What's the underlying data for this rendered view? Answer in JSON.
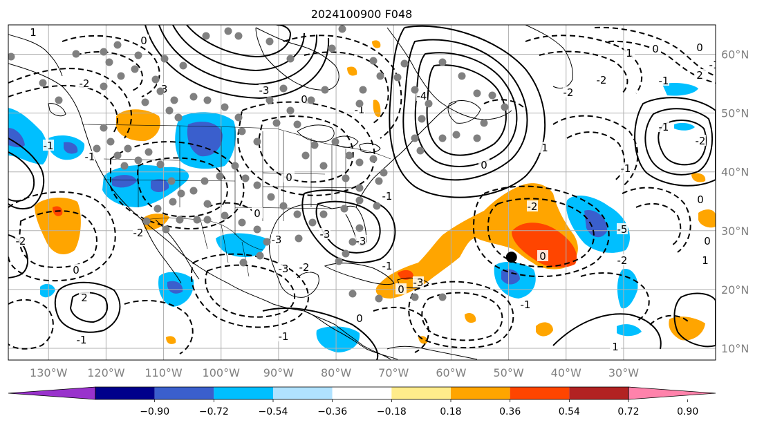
{
  "title": "2024100900 F048",
  "map": {
    "lon_range": [
      -137,
      -14
    ],
    "lat_range": [
      8,
      65
    ],
    "lon_ticks": [
      {
        "value": -130,
        "label": "130°W"
      },
      {
        "value": -120,
        "label": "120°W"
      },
      {
        "value": -110,
        "label": "110°W"
      },
      {
        "value": -100,
        "label": "100°W"
      },
      {
        "value": -90,
        "label": "90°W"
      },
      {
        "value": -80,
        "label": "80°W"
      },
      {
        "value": -70,
        "label": "70°W"
      },
      {
        "value": -60,
        "label": "60°W"
      },
      {
        "value": -50,
        "label": "50°W"
      },
      {
        "value": -40,
        "label": "40°W"
      },
      {
        "value": -30,
        "label": "30°W"
      }
    ],
    "lat_ticks": [
      {
        "value": 10,
        "label": "10°N"
      },
      {
        "value": 20,
        "label": "20°N"
      },
      {
        "value": 30,
        "label": "30°N"
      },
      {
        "value": 40,
        "label": "40°N"
      },
      {
        "value": 50,
        "label": "50°N"
      },
      {
        "value": 60,
        "label": "60°N"
      }
    ],
    "gridlines": true,
    "marker": {
      "lon": -49.5,
      "lat": 25.5
    },
    "colors": {
      "coast": "#000000",
      "grid": "#b0b0b0",
      "station_dots": "#808080",
      "marker": "#000000"
    }
  },
  "colorbar": {
    "ticks": [
      "−0.90",
      "−0.72",
      "−0.54",
      "−0.36",
      "−0.18",
      "0.18",
      "0.36",
      "0.54",
      "0.72",
      "0.90"
    ],
    "colors": [
      "#9932cc",
      "#00008b",
      "#3a5fcd",
      "#00bfff",
      "#b0e2ff",
      "#ffffff",
      "#ffec8b",
      "#ffa500",
      "#ff4500",
      "#b22222",
      "#ff82ab"
    ],
    "extend": "both"
  },
  "contour_labels": [
    "1",
    "-2",
    "-3",
    "0",
    "-3",
    "-1",
    "-1",
    "-3",
    "-3",
    "-2",
    "0",
    "-3",
    "-4",
    "0",
    "-3",
    "-1",
    "-2",
    "-5",
    "-2",
    "1",
    "2",
    "-1",
    "0",
    "-2",
    "-1",
    "0",
    "-1",
    "-1",
    "0",
    "0",
    "1",
    "1",
    "0",
    "-1",
    "0",
    "-2",
    "-1",
    "-2",
    "2",
    "-1",
    "-2",
    "1",
    "0",
    "-3",
    "0",
    "0",
    "0",
    "-1",
    "-1",
    "-2"
  ]
}
